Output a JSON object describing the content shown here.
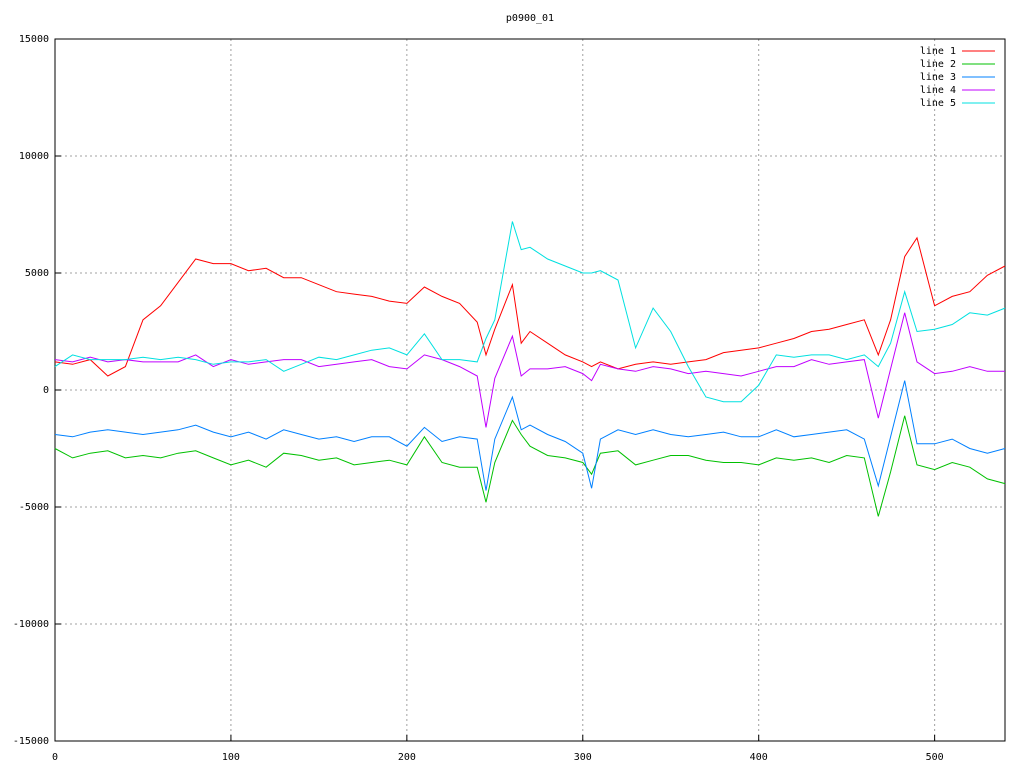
{
  "chart_data": {
    "type": "line",
    "title": "p0900_01",
    "x": [
      0,
      10,
      20,
      30,
      40,
      50,
      60,
      70,
      80,
      90,
      100,
      110,
      120,
      130,
      140,
      150,
      160,
      170,
      180,
      190,
      200,
      210,
      220,
      230,
      240,
      245,
      250,
      260,
      265,
      270,
      280,
      290,
      300,
      305,
      310,
      320,
      330,
      340,
      350,
      360,
      370,
      380,
      390,
      400,
      410,
      420,
      430,
      440,
      450,
      460,
      468,
      475,
      483,
      490,
      500,
      510,
      520,
      530,
      540
    ],
    "series": [
      {
        "name": "line 1",
        "color": "#ff0000",
        "values": [
          1200,
          1100,
          1300,
          600,
          1000,
          3000,
          3600,
          4600,
          5600,
          5400,
          5400,
          5100,
          5200,
          4800,
          4800,
          4500,
          4200,
          4100,
          4000,
          3800,
          3700,
          4400,
          4000,
          3700,
          2900,
          1500,
          2600,
          4500,
          2000,
          2500,
          2000,
          1500,
          1200,
          1000,
          1200,
          900,
          1100,
          1200,
          1100,
          1200,
          1300,
          1600,
          1700,
          1800,
          2000,
          2200,
          2500,
          2600,
          2800,
          3000,
          1500,
          3000,
          5700,
          6500,
          3600,
          4000,
          4200,
          4900,
          5300
        ]
      },
      {
        "name": "line 2",
        "color": "#00c000",
        "values": [
          -2500,
          -2900,
          -2700,
          -2600,
          -2900,
          -2800,
          -2900,
          -2700,
          -2600,
          -2900,
          -3200,
          -3000,
          -3300,
          -2700,
          -2800,
          -3000,
          -2900,
          -3200,
          -3100,
          -3000,
          -3200,
          -2000,
          -3100,
          -3300,
          -3300,
          -4800,
          -3100,
          -1300,
          -1900,
          -2400,
          -2800,
          -2900,
          -3100,
          -3600,
          -2700,
          -2600,
          -3200,
          -3000,
          -2800,
          -2800,
          -3000,
          -3100,
          -3100,
          -3200,
          -2900,
          -3000,
          -2900,
          -3100,
          -2800,
          -2900,
          -5400,
          -3500,
          -1100,
          -3200,
          -3400,
          -3100,
          -3300,
          -3800,
          -4000
        ]
      },
      {
        "name": "line 3",
        "color": "#0080ff",
        "values": [
          -1900,
          -2000,
          -1800,
          -1700,
          -1800,
          -1900,
          -1800,
          -1700,
          -1500,
          -1800,
          -2000,
          -1800,
          -2100,
          -1700,
          -1900,
          -2100,
          -2000,
          -2200,
          -2000,
          -2000,
          -2400,
          -1600,
          -2200,
          -2000,
          -2100,
          -4300,
          -2100,
          -300,
          -1700,
          -1500,
          -1900,
          -2200,
          -2700,
          -4200,
          -2100,
          -1700,
          -1900,
          -1700,
          -1900,
          -2000,
          -1900,
          -1800,
          -2000,
          -2000,
          -1700,
          -2000,
          -1900,
          -1800,
          -1700,
          -2100,
          -4100,
          -2000,
          400,
          -2300,
          -2300,
          -2100,
          -2500,
          -2700,
          -2500
        ]
      },
      {
        "name": "line 4",
        "color": "#c000ff",
        "values": [
          1300,
          1200,
          1400,
          1200,
          1300,
          1200,
          1200,
          1200,
          1500,
          1000,
          1300,
          1100,
          1200,
          1300,
          1300,
          1000,
          1100,
          1200,
          1300,
          1000,
          900,
          1500,
          1300,
          1000,
          600,
          -1600,
          500,
          2300,
          600,
          900,
          900,
          1000,
          700,
          400,
          1100,
          900,
          800,
          1000,
          900,
          700,
          800,
          700,
          600,
          800,
          1000,
          1000,
          1300,
          1100,
          1200,
          1300,
          -1200,
          900,
          3300,
          1200,
          700,
          800,
          1000,
          800,
          800
        ]
      },
      {
        "name": "line 5",
        "color": "#00e0e0",
        "values": [
          1000,
          1500,
          1300,
          1300,
          1300,
          1400,
          1300,
          1400,
          1300,
          1100,
          1200,
          1200,
          1300,
          800,
          1100,
          1400,
          1300,
          1500,
          1700,
          1800,
          1500,
          2400,
          1300,
          1300,
          1200,
          2200,
          3000,
          7200,
          6000,
          6100,
          5600,
          5300,
          5000,
          5000,
          5100,
          4700,
          1800,
          3500,
          2500,
          1000,
          -300,
          -500,
          -500,
          200,
          1500,
          1400,
          1500,
          1500,
          1300,
          1500,
          1000,
          2000,
          4200,
          2500,
          2600,
          2800,
          3300,
          3200,
          3500
        ]
      }
    ],
    "xlim": [
      0,
      540
    ],
    "xticks": [
      0,
      100,
      200,
      300,
      400,
      500
    ],
    "ylim": [
      -15000,
      15000
    ],
    "yticks": [
      -15000,
      -10000,
      -5000,
      0,
      5000,
      10000,
      15000
    ],
    "grid": true,
    "legend": "top-right"
  }
}
